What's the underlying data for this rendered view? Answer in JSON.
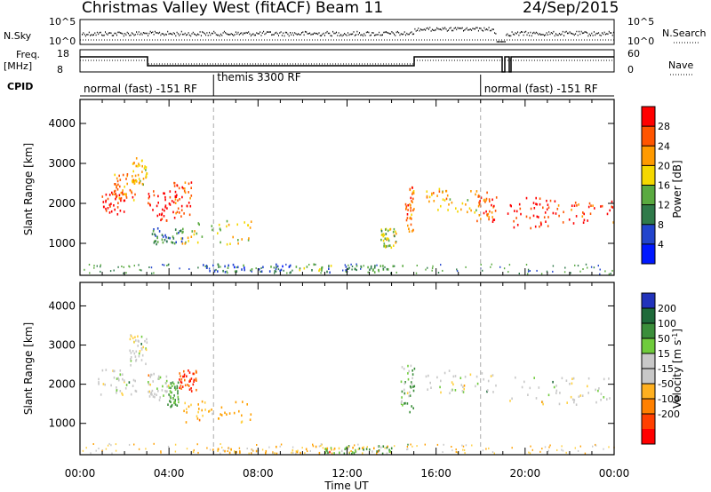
{
  "header": {
    "station": "Christmas Valley West (fitACF)",
    "beam": "Beam 11",
    "date": "24/Sep/2015"
  },
  "strip_labels": {
    "nsky": "N.Sky",
    "nsearch": "N.Search",
    "freq": "Freq.",
    "freq_unit": "[MHz]",
    "nave": "Nave",
    "cpid": "CPID",
    "nsky_top": "10^5",
    "nsky_bottom": "10^0",
    "freq_top": "18",
    "freq_bottom": "8",
    "nave_top": "60",
    "nave_bottom": "0"
  },
  "cpid_modes": [
    {
      "label": "normal (fast) -151 RF",
      "start_hour": 0,
      "end_hour": 6
    },
    {
      "label": "themis 3300 RF",
      "start_hour": 6,
      "end_hour": 18
    },
    {
      "label": "normal (fast) -151 RF",
      "start_hour": 18,
      "end_hour": 24
    }
  ],
  "chart_data": [
    {
      "type": "heatmap",
      "name": "power",
      "ylabel": "Slant Range [km]",
      "yticks": [
        "1000",
        "2000",
        "3000",
        "4000"
      ],
      "ylim": [
        200,
        4600
      ],
      "xlim": [
        0,
        24
      ],
      "colorbar": {
        "label": "Power [dB]",
        "ticks": [
          "4",
          "8",
          "12",
          "16",
          "20",
          "24",
          "28"
        ],
        "range": [
          0,
          32
        ],
        "colors": [
          "#0018ff",
          "#2244cc",
          "#2f7a4a",
          "#5aaa40",
          "#f5d800",
          "#ff9a00",
          "#ff5500",
          "#ff0000"
        ]
      },
      "regions": [
        {
          "t0": 0.8,
          "t1": 2.0,
          "r0": 1750,
          "r1": 2300,
          "level": 30
        },
        {
          "t0": 1.5,
          "t1": 2.5,
          "r0": 2100,
          "r1": 2800,
          "level": 24
        },
        {
          "t0": 2.3,
          "t1": 3.0,
          "r0": 2500,
          "r1": 3200,
          "level": 20
        },
        {
          "t0": 3.0,
          "t1": 4.3,
          "r0": 1550,
          "r1": 2350,
          "level": 30
        },
        {
          "t0": 4.2,
          "t1": 5.0,
          "r0": 1700,
          "r1": 2600,
          "level": 26
        },
        {
          "t0": 4.5,
          "t1": 7.8,
          "r0": 1000,
          "r1": 1600,
          "level": 18
        },
        {
          "t0": 3.2,
          "t1": 4.6,
          "r0": 1000,
          "r1": 1400,
          "level": 10
        },
        {
          "t0": 9.5,
          "t1": 14.5,
          "r0": 300,
          "r1": 500,
          "level": 12
        },
        {
          "t0": 5.5,
          "t1": 9.5,
          "r0": 300,
          "r1": 500,
          "level": 8
        },
        {
          "t0": 13.5,
          "t1": 14.2,
          "r0": 900,
          "r1": 1400,
          "level": 16
        },
        {
          "t0": 14.6,
          "t1": 15.0,
          "r0": 1300,
          "r1": 2500,
          "level": 24
        },
        {
          "t0": 15.5,
          "t1": 17.8,
          "r0": 1800,
          "r1": 2400,
          "level": 20
        },
        {
          "t0": 17.8,
          "t1": 18.7,
          "r0": 1550,
          "r1": 2300,
          "level": 26
        },
        {
          "t0": 19.2,
          "t1": 21.0,
          "r0": 1400,
          "r1": 2200,
          "level": 30
        },
        {
          "t0": 21.0,
          "t1": 24.0,
          "r0": 1500,
          "r1": 2100,
          "level": 28
        }
      ]
    },
    {
      "type": "heatmap",
      "name": "velocity",
      "ylabel": "Slant Range [km]",
      "yticks": [
        "1000",
        "2000",
        "3000",
        "4000"
      ],
      "ylim": [
        200,
        4600
      ],
      "xlim": [
        0,
        24
      ],
      "xticks": [
        "00:00",
        "04:00",
        "08:00",
        "12:00",
        "16:00",
        "20:00",
        "00:00"
      ],
      "xlabel": "Time UT",
      "colorbar": {
        "label": "Velocity [m s^-1]",
        "ticks": [
          "200",
          "100",
          "50",
          "15",
          "-15",
          "-50",
          "-100",
          "-200"
        ],
        "colors": [
          "#2233bb",
          "#1e6a3a",
          "#3b8e3a",
          "#6fcb3c",
          "#c8c8c8",
          "#c8c8c8",
          "#ffb020",
          "#ff8000",
          "#ff4000",
          "#ff0000"
        ]
      },
      "regions": [
        {
          "t0": 0.8,
          "t1": 2.5,
          "r0": 1750,
          "r1": 2400,
          "level": 0
        },
        {
          "t0": 2.2,
          "t1": 3.0,
          "r0": 2500,
          "r1": 3300,
          "level": 0
        },
        {
          "t0": 3.0,
          "t1": 4.0,
          "r0": 1600,
          "r1": 2300,
          "level": 0
        },
        {
          "t0": 3.9,
          "t1": 4.4,
          "r0": 1450,
          "r1": 2100,
          "level": 40
        },
        {
          "t0": 4.4,
          "t1": 5.2,
          "r0": 1850,
          "r1": 2400,
          "level": -150
        },
        {
          "t0": 4.6,
          "t1": 7.8,
          "r0": 1000,
          "r1": 1600,
          "level": -40
        },
        {
          "t0": 5.0,
          "t1": 14.0,
          "r0": 250,
          "r1": 450,
          "level": -40
        },
        {
          "t0": 11.0,
          "t1": 14.0,
          "r0": 250,
          "r1": 450,
          "level": 30
        },
        {
          "t0": 14.4,
          "t1": 15.0,
          "r0": 1300,
          "r1": 2500,
          "level": 25
        },
        {
          "t0": 15.5,
          "t1": 18.7,
          "r0": 1800,
          "r1": 2400,
          "level": 0
        },
        {
          "t0": 19.2,
          "t1": 24.0,
          "r0": 1500,
          "r1": 2200,
          "level": 0
        }
      ]
    }
  ]
}
